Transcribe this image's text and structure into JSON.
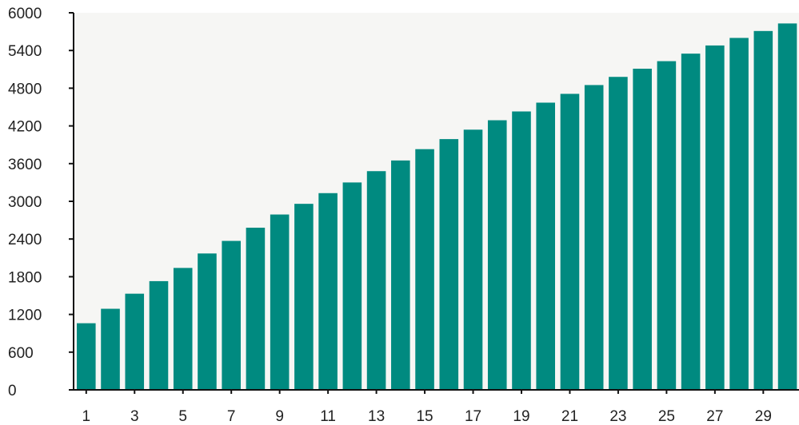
{
  "chart_data": {
    "type": "bar",
    "title": "",
    "xlabel": "",
    "ylabel": "",
    "categories": [
      "1",
      "2",
      "3",
      "4",
      "5",
      "6",
      "7",
      "8",
      "9",
      "10",
      "11",
      "12",
      "13",
      "14",
      "15",
      "16",
      "17",
      "18",
      "19",
      "20",
      "21",
      "22",
      "23",
      "24",
      "25",
      "26",
      "27",
      "28",
      "29",
      "30"
    ],
    "x_tick_labels": [
      "1",
      "3",
      "5",
      "7",
      "9",
      "11",
      "13",
      "15",
      "17",
      "19",
      "21",
      "23",
      "25",
      "27",
      "29"
    ],
    "y_tick_labels": [
      "0",
      "600",
      "1200",
      "1800",
      "2400",
      "3000",
      "3600",
      "4200",
      "4800",
      "5400",
      "6000"
    ],
    "values": [
      1060,
      1290,
      1530,
      1730,
      1940,
      2170,
      2370,
      2580,
      2790,
      2960,
      3130,
      3300,
      3480,
      3650,
      3830,
      3990,
      4140,
      4290,
      4430,
      4570,
      4710,
      4850,
      4980,
      5110,
      5230,
      5350,
      5480,
      5600,
      5710,
      5830
    ],
    "ylim": [
      0,
      6000
    ],
    "grid": false,
    "legend": "none",
    "colors": {
      "bar": "#008A80",
      "axis": "#111111",
      "text": "#222222",
      "background": "#f6f6f4"
    }
  }
}
